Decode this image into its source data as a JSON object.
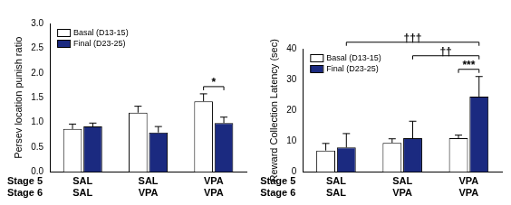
{
  "chart_data": [
    {
      "type": "bar",
      "y_label": "Persev location punish ratio",
      "categories": [
        [
          "SAL",
          "SAL"
        ],
        [
          "SAL",
          "VPA"
        ],
        [
          "VPA",
          "VPA"
        ]
      ],
      "category_rows": [
        "Stage 5",
        "Stage 6"
      ],
      "series": [
        {
          "name": "Basal (D13-15)",
          "color": "#ffffff",
          "values": [
            0.87,
            1.2,
            1.43
          ],
          "errors": [
            0.1,
            0.13,
            0.15
          ]
        },
        {
          "name": "Final (D23-25)",
          "color": "#1b2a80",
          "values": [
            0.92,
            0.8,
            0.99
          ],
          "errors": [
            0.07,
            0.12,
            0.12
          ]
        }
      ],
      "ylim": [
        0,
        3
      ],
      "yticks": [
        {
          "value": 0,
          "label": "0.0"
        },
        {
          "value": 0.5,
          "label": "0.5"
        },
        {
          "value": 1,
          "label": "1.0"
        },
        {
          "value": 1.5,
          "label": "1.5"
        },
        {
          "value": 2,
          "label": "2.0"
        },
        {
          "value": 2.5,
          "label": "2.5"
        },
        {
          "value": 3,
          "label": "3.0"
        }
      ],
      "legend": "upper left",
      "annotations": [
        {
          "text": "*",
          "from": [
            2,
            0
          ],
          "to": [
            2,
            1
          ]
        }
      ]
    },
    {
      "type": "bar",
      "y_label": "Reward Collection Latency (sec)",
      "categories": [
        [
          "SAL",
          "SAL"
        ],
        [
          "SAL",
          "VPA"
        ],
        [
          "VPA",
          "VPA"
        ]
      ],
      "category_rows": [
        "Stage 5",
        "Stage 6"
      ],
      "series": [
        {
          "name": "Basal (D13-15)",
          "color": "#ffffff",
          "values": [
            7,
            9.5,
            11
          ],
          "errors": [
            2.3,
            1.3,
            1.0
          ]
        },
        {
          "name": "Final (D23-25)",
          "color": "#1b2a80",
          "values": [
            8,
            11,
            24.5
          ],
          "errors": [
            4.5,
            5.5,
            6.5
          ]
        }
      ],
      "ylim": [
        0,
        40
      ],
      "yticks": [
        0,
        10,
        20,
        30,
        40
      ],
      "legend": "upper left",
      "annotations": [
        {
          "text": "***",
          "from": [
            2,
            0
          ],
          "to": [
            2,
            1
          ]
        },
        {
          "text": "††",
          "from": [
            1,
            1
          ],
          "to": [
            2,
            1
          ]
        },
        {
          "text": "†††",
          "from": [
            0,
            1
          ],
          "to": [
            2,
            1
          ]
        }
      ]
    }
  ]
}
